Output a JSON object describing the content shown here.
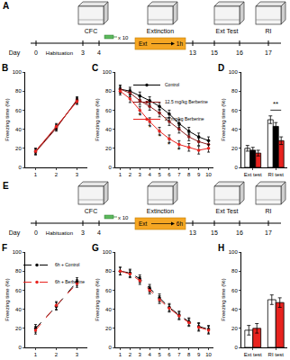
{
  "timelines": [
    {
      "panel": "A",
      "stages": [
        "CFC",
        "Extinction",
        "Ext Test",
        "RI"
      ],
      "day_label": "Day",
      "days": [
        "0",
        "3",
        "4",
        "13",
        "15",
        "16",
        "17"
      ],
      "habituation": "Habituation",
      "repeat": "x 10",
      "session": "Ext",
      "interval": "1h"
    },
    {
      "panel": "E",
      "stages": [
        "CFC",
        "Extinction",
        "Ext Test",
        "RI"
      ],
      "day_label": "Day",
      "days": [
        "0",
        "3",
        "4",
        "13",
        "15",
        "16",
        "17"
      ],
      "habituation": "Habituation",
      "repeat": "x 10",
      "session": "Ext",
      "interval": "6h"
    }
  ],
  "chart_data": [
    {
      "panel": "B",
      "type": "line",
      "y_label": "Freezing time (%)",
      "x": [
        1,
        2,
        3
      ],
      "xlim": [
        0.5,
        3.5
      ],
      "xticks": [
        1,
        2,
        3
      ],
      "ylim": [
        0,
        100
      ],
      "yticks": [
        0,
        20,
        40,
        60,
        80,
        100
      ],
      "grid": false,
      "series": [
        {
          "name": "Control",
          "color": "#000000",
          "marker": "circle",
          "line_style": "solid",
          "values": [
            17,
            42,
            70
          ],
          "error": [
            3,
            3,
            3
          ]
        },
        {
          "name": "12.5 mg/kg Berberine",
          "color": "#8b1a1a",
          "marker": "circle",
          "line_style": "solid",
          "values": [
            16,
            41,
            71
          ],
          "error": [
            3,
            3,
            3
          ]
        },
        {
          "name": "25 mg/kg Berberine",
          "color": "#e8231f",
          "marker": "circle",
          "line_style": "solid",
          "values": [
            17,
            43,
            69
          ],
          "error": [
            3,
            3,
            3
          ]
        }
      ]
    },
    {
      "panel": "C",
      "type": "line",
      "y_label": "Freezing time (%)",
      "x": [
        1,
        2,
        3,
        4,
        5,
        6,
        7,
        8,
        9,
        10
      ],
      "xlim": [
        0.5,
        10.5
      ],
      "xticks": [
        1,
        2,
        3,
        4,
        5,
        6,
        7,
        8,
        9,
        10
      ],
      "ylim": [
        0,
        100
      ],
      "yticks": [
        0,
        20,
        40,
        60,
        80,
        100
      ],
      "grid": false,
      "legend": "top right",
      "series": [
        {
          "name": "Control",
          "color": "#000000",
          "marker": "circle",
          "line_style": "solid",
          "values": [
            82,
            80,
            75,
            70,
            64,
            56,
            46,
            38,
            32,
            28
          ],
          "error": [
            4,
            4,
            4,
            4,
            4,
            4,
            4,
            4,
            4,
            4
          ]
        },
        {
          "name": "12.5 mg/kg Berberine",
          "color": "#8b1a1a",
          "marker": "circle",
          "line_style": "solid",
          "values": [
            82,
            78,
            70,
            64,
            57,
            48,
            40,
            32,
            27,
            24
          ],
          "error": [
            4,
            4,
            4,
            4,
            4,
            4,
            4,
            4,
            4,
            4
          ]
        },
        {
          "name": "25 mg/kg Berberine",
          "color": "#e8231f",
          "marker": "circle",
          "line_style": "solid",
          "values": [
            80,
            72,
            60,
            48,
            38,
            30,
            24,
            21,
            18,
            20
          ],
          "error": [
            4,
            4,
            4,
            4,
            4,
            4,
            4,
            4,
            4,
            4
          ]
        }
      ],
      "annotations": [
        {
          "x": 3,
          "y": 48,
          "text": "*"
        },
        {
          "x": 4,
          "y": 36,
          "text": "*"
        },
        {
          "x": 5,
          "y": 26,
          "text": "*"
        },
        {
          "x": 6,
          "y": 18,
          "text": "*"
        },
        {
          "x": 7,
          "y": 12,
          "text": "*"
        }
      ]
    },
    {
      "panel": "D",
      "type": "bar",
      "y_label": "Freezing time (%)",
      "categories": [
        "Ext test",
        "RI test"
      ],
      "ylim": [
        0,
        100
      ],
      "yticks": [
        0,
        20,
        40,
        60,
        80,
        100
      ],
      "grid": false,
      "series": [
        {
          "name": "Control",
          "color": "#ffffff",
          "values": [
            20,
            50
          ],
          "error": [
            3,
            4
          ]
        },
        {
          "name": "12.5 mg/kg Berberine",
          "color": "#000000",
          "values": [
            18,
            43
          ],
          "error": [
            3,
            4
          ]
        },
        {
          "name": "25 mg/kg Berberine",
          "color": "#e8231f",
          "values": [
            15,
            28
          ],
          "error": [
            3,
            4
          ]
        }
      ],
      "annotations": [
        {
          "x": 1,
          "y": 60,
          "text": "**",
          "between": [
            "Control",
            "25 mg/kg Berberine"
          ]
        }
      ]
    },
    {
      "panel": "F",
      "type": "line",
      "y_label": "Freezing time (%)",
      "x": [
        1,
        2,
        3
      ],
      "xlim": [
        0.5,
        3.5
      ],
      "xticks": [
        1,
        2,
        3
      ],
      "ylim": [
        0,
        100
      ],
      "yticks": [
        0,
        20,
        40,
        60,
        80,
        100
      ],
      "grid": false,
      "legend": "top left",
      "series": [
        {
          "name": "6h + Control",
          "color": "#000000",
          "marker": "circle",
          "line_style": "dashed",
          "values": [
            20,
            43,
            69
          ],
          "error": [
            4,
            4,
            4
          ]
        },
        {
          "name": "6h + Berberine",
          "color": "#e8231f",
          "marker": "circle",
          "line_style": "dashed",
          "values": [
            18,
            44,
            67
          ],
          "error": [
            4,
            4,
            4
          ]
        }
      ]
    },
    {
      "panel": "G",
      "type": "line",
      "y_label": "Freezing time (%)",
      "x": [
        1,
        2,
        3,
        4,
        5,
        6,
        7,
        8,
        9,
        10
      ],
      "xlim": [
        0.5,
        10.5
      ],
      "xticks": [
        1,
        2,
        3,
        4,
        5,
        6,
        7,
        8,
        9,
        10
      ],
      "ylim": [
        0,
        100
      ],
      "yticks": [
        0,
        20,
        40,
        60,
        80,
        100
      ],
      "grid": false,
      "series": [
        {
          "name": "6h + Control",
          "color": "#000000",
          "marker": "circle",
          "line_style": "dashed",
          "values": [
            80,
            78,
            72,
            62,
            52,
            42,
            34,
            27,
            22,
            19
          ],
          "error": [
            4,
            4,
            4,
            4,
            4,
            4,
            4,
            4,
            4,
            4
          ]
        },
        {
          "name": "6h + Berberine",
          "color": "#e8231f",
          "marker": "circle",
          "line_style": "dashed",
          "values": [
            80,
            77,
            70,
            60,
            50,
            41,
            33,
            26,
            21,
            18
          ],
          "error": [
            4,
            4,
            4,
            4,
            4,
            4,
            4,
            4,
            4,
            4
          ]
        }
      ]
    },
    {
      "panel": "H",
      "type": "bar",
      "y_label": "Freezing time (%)",
      "categories": [
        "Ext test",
        "RI test"
      ],
      "ylim": [
        0,
        100
      ],
      "yticks": [
        0,
        20,
        40,
        60,
        80,
        100
      ],
      "grid": false,
      "series": [
        {
          "name": "6h + Control",
          "color": "#ffffff",
          "values": [
            18,
            50
          ],
          "error": [
            5,
            5
          ]
        },
        {
          "name": "6h + Berberine",
          "color": "#e8231f",
          "values": [
            20,
            47
          ],
          "error": [
            5,
            5
          ]
        }
      ]
    }
  ]
}
